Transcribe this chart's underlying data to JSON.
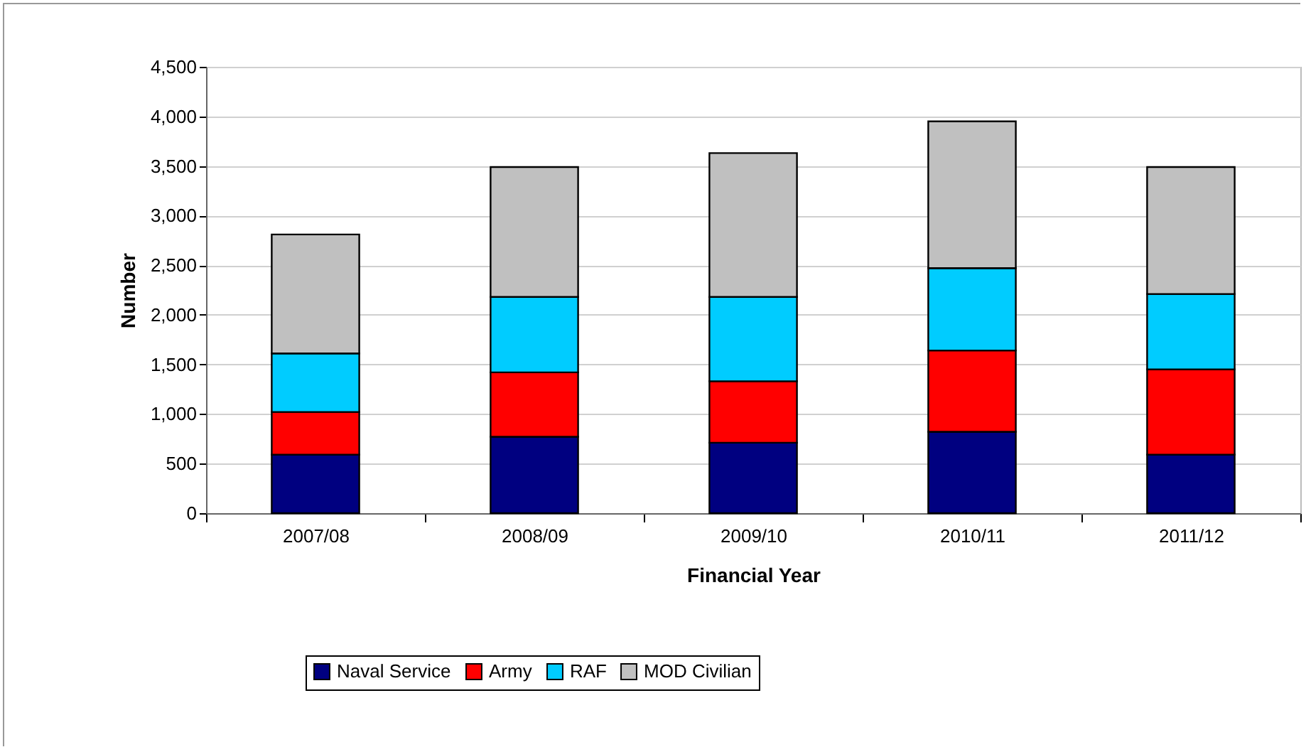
{
  "chart_data": {
    "type": "bar",
    "stacked": true,
    "xlabel": "Financial Year",
    "ylabel": "Number",
    "categories": [
      "2007/08",
      "2008/09",
      "2009/10",
      "2010/11",
      "2011/12"
    ],
    "series": [
      {
        "name": "Naval Service",
        "color": "#000080",
        "values": [
          590,
          770,
          710,
          820,
          590
        ]
      },
      {
        "name": "Army",
        "color": "#ff0000",
        "values": [
          430,
          650,
          620,
          820,
          860
        ]
      },
      {
        "name": "RAF",
        "color": "#00ccff",
        "values": [
          590,
          760,
          850,
          830,
          760
        ]
      },
      {
        "name": "MOD Civilian",
        "color": "#c0c0c0",
        "values": [
          1200,
          1310,
          1450,
          1480,
          1280
        ]
      }
    ],
    "ylim": [
      0,
      4500
    ],
    "yticks": [
      0,
      {
        "value": 500,
        "label": "500"
      },
      {
        "value": 1000,
        "label": "1,000"
      },
      {
        "value": 1500,
        "label": "1,500"
      },
      {
        "value": 2000,
        "label": "2,000"
      },
      {
        "value": 2500,
        "label": "2,500"
      },
      {
        "value": 3000,
        "label": "3,000"
      },
      {
        "value": 3500,
        "label": "3,500"
      },
      {
        "value": 4000,
        "label": "4,000"
      },
      {
        "value": 4500,
        "label": "4,500"
      }
    ],
    "grid": "y",
    "legend": "bottom"
  }
}
